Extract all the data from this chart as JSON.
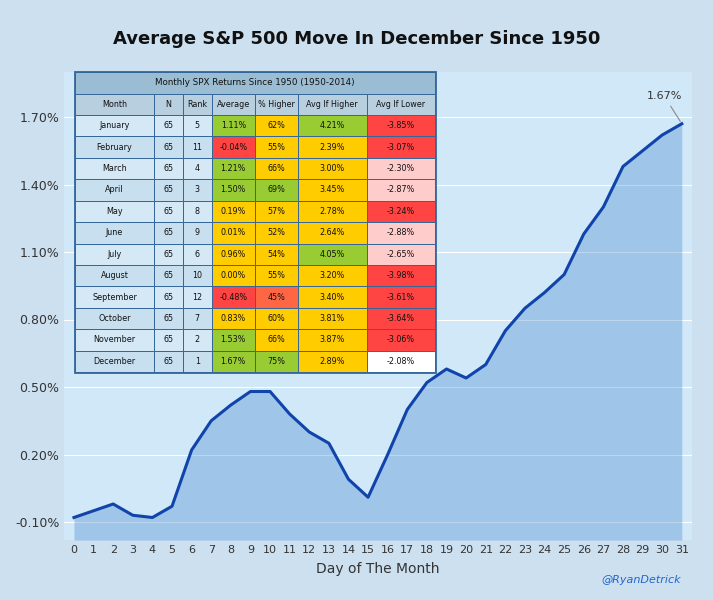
{
  "title": "Average S&P 500 Move In December Since 1950",
  "xlabel": "Day of The Month",
  "background_color": "#cce0f0",
  "line_color": "#1144aa",
  "yticks": [
    -0.001,
    0.002,
    0.005,
    0.008,
    0.011,
    0.014,
    0.017
  ],
  "ytick_labels": [
    "-0.10%",
    "0.20%",
    "0.50%",
    "0.80%",
    "1.10%",
    "1.40%",
    "1.70%"
  ],
  "xticks": [
    0,
    1,
    2,
    3,
    4,
    5,
    6,
    7,
    8,
    9,
    10,
    11,
    12,
    13,
    14,
    15,
    16,
    17,
    18,
    19,
    20,
    21,
    22,
    23,
    24,
    25,
    26,
    27,
    28,
    29,
    30,
    31
  ],
  "annotation_text": "1.67%",
  "watermark": "@RyanDetrick",
  "line_x": [
    0,
    1,
    2,
    3,
    4,
    5,
    6,
    7,
    8,
    9,
    10,
    11,
    12,
    13,
    14,
    15,
    16,
    17,
    18,
    19,
    20,
    21,
    22,
    23,
    24,
    25,
    26,
    27,
    28,
    29,
    30,
    31
  ],
  "line_y": [
    -0.0008,
    -0.0005,
    -0.0002,
    -0.0007,
    -0.0008,
    -0.0003,
    0.0022,
    0.0035,
    0.0042,
    0.0048,
    0.0048,
    0.0038,
    0.003,
    0.0025,
    0.0009,
    0.0001,
    0.002,
    0.004,
    0.0052,
    0.0058,
    0.0054,
    0.006,
    0.0075,
    0.0085,
    0.0092,
    0.01,
    0.0118,
    0.013,
    0.0148,
    0.0155,
    0.0162,
    0.0167
  ],
  "table_title": "Monthly SPX Returns Since 1950 (1950-2014)",
  "table_header": [
    "Month",
    "N",
    "Rank",
    "Average",
    "% Higher",
    "Avg If Higher",
    "Avg If Lower"
  ],
  "table_data": [
    [
      "January",
      "65",
      "5",
      "1.11%",
      "62%",
      "4.21%",
      "-3.85%"
    ],
    [
      "February",
      "65",
      "11",
      "-0.04%",
      "55%",
      "2.39%",
      "-3.07%"
    ],
    [
      "March",
      "65",
      "4",
      "1.21%",
      "66%",
      "3.00%",
      "-2.30%"
    ],
    [
      "April",
      "65",
      "3",
      "1.50%",
      "69%",
      "3.45%",
      "-2.87%"
    ],
    [
      "May",
      "65",
      "8",
      "0.19%",
      "57%",
      "2.78%",
      "-3.24%"
    ],
    [
      "June",
      "65",
      "9",
      "0.01%",
      "52%",
      "2.64%",
      "-2.88%"
    ],
    [
      "July",
      "65",
      "6",
      "0.96%",
      "54%",
      "4.05%",
      "-2.65%"
    ],
    [
      "August",
      "65",
      "10",
      "0.00%",
      "55%",
      "3.20%",
      "-3.98%"
    ],
    [
      "September",
      "65",
      "12",
      "-0.48%",
      "45%",
      "3.40%",
      "-3.61%"
    ],
    [
      "October",
      "65",
      "7",
      "0.83%",
      "60%",
      "3.81%",
      "-3.64%"
    ],
    [
      "November",
      "65",
      "2",
      "1.53%",
      "66%",
      "3.87%",
      "-3.06%"
    ],
    [
      "December",
      "65",
      "1",
      "1.67%",
      "75%",
      "2.89%",
      "-2.08%"
    ]
  ],
  "avg_colors": [
    "#99cc33",
    "#ff4444",
    "#99cc33",
    "#99cc33",
    "#ffcc00",
    "#ffcc00",
    "#ffcc00",
    "#ffcc00",
    "#ff4444",
    "#ffcc00",
    "#99cc33",
    "#99cc33"
  ],
  "pct_colors": [
    "#ffcc00",
    "#ffcc00",
    "#ffcc00",
    "#99cc33",
    "#ffcc00",
    "#ffcc00",
    "#ffcc00",
    "#ffcc00",
    "#ff6644",
    "#ffcc00",
    "#ffcc00",
    "#99cc33"
  ],
  "avghi_colors": [
    "#99cc33",
    "#ffcc00",
    "#ffcc00",
    "#ffcc00",
    "#ffcc00",
    "#ffcc00",
    "#99cc33",
    "#ffcc00",
    "#ffcc00",
    "#ffcc00",
    "#ffcc00",
    "#ffcc00"
  ],
  "avglo_colors": [
    "#ff4444",
    "#ff4444",
    "#ffcccc",
    "#ffcccc",
    "#ff4444",
    "#ffcccc",
    "#ffcccc",
    "#ff4444",
    "#ff4444",
    "#ff4444",
    "#ff4444",
    "#ffffff"
  ]
}
